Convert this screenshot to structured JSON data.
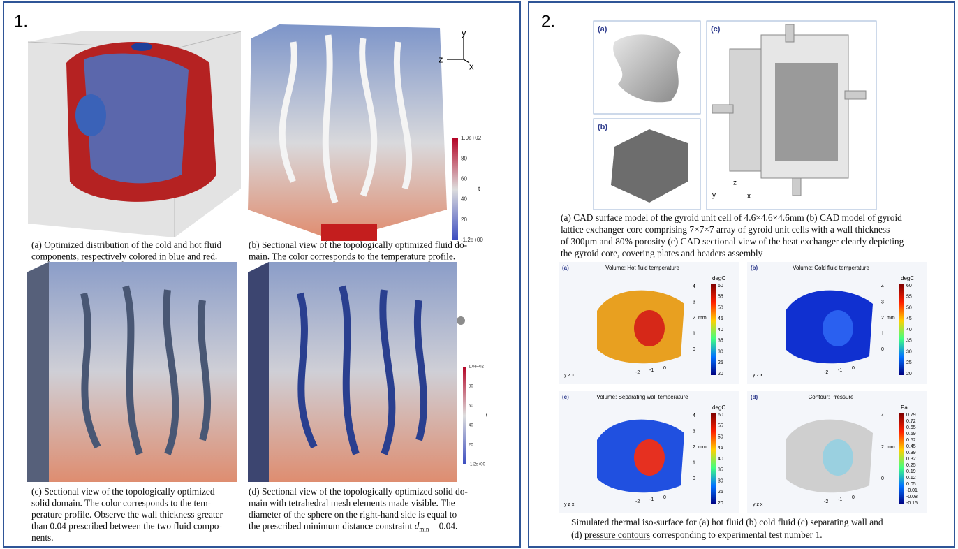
{
  "panel1": {
    "number": "1.",
    "axes": {
      "y": "y",
      "z": "z",
      "x": "x"
    },
    "colorbar_b": {
      "ticks": [
        "1.0e+02",
        "80",
        "60",
        "40",
        "20",
        "-1.2e+00"
      ],
      "label": "t"
    },
    "colorbar_d": {
      "ticks": [
        "1.0e+02",
        "80",
        "60",
        "40",
        "20",
        "-1.2e+00"
      ],
      "label": "t"
    },
    "captions": [
      {
        "lines": [
          "(a) Optimized distribution of the cold and hot fluid",
          "components, respectively colored in blue and red."
        ]
      },
      {
        "lines": [
          "(b) Sectional view of the topologically optimized fluid do-",
          "main. The color corresponds to the temperature profile."
        ]
      },
      {
        "lines": [
          "(c) Sectional view of the topologically optimized",
          "solid domain. The color corresponds to the tem-",
          "perature profile. Observe the wall thickness greater",
          "than 0.04 prescribed between the two fluid compo-",
          "nents."
        ]
      },
      {
        "lines": [
          "(d) Sectional view of the topologically optimized solid do-",
          "main with tetrahedral mesh elements made visible. The",
          "diameter of the sphere on the right-hand side is equal to"
        ],
        "math_line": {
          "text": "the prescribed minimum distance constraint ",
          "symbol": "d",
          "subscript": "min",
          "rest": " = 0.04."
        }
      }
    ]
  },
  "panel2": {
    "number": "2.",
    "cad_labels": [
      "(a)",
      "(b)",
      "(c)"
    ],
    "cad_axes": {
      "y": "y",
      "z": "z",
      "x": "x"
    },
    "caption_top": [
      "(a) CAD surface model of the gyroid unit cell of 4.6×4.6×4.6mm (b) CAD model of gyroid",
      "lattice exchanger core comprising 7×7×7 array of gyroid unit cells with a wall thickness",
      "of 300μm and 80% porosity (c) CAD sectional view of the heat exchanger clearly depicting",
      "the gyroid core, covering plates and headers assembly"
    ],
    "plots": [
      {
        "label": "(a)",
        "title": "Volume: Hot fluid temperature",
        "unit": "degC",
        "ticks": [
          "60",
          "55",
          "50",
          "45",
          "40",
          "35",
          "30",
          "25",
          "20"
        ],
        "axis_right": [
          "4",
          "3",
          "2",
          "1",
          "0"
        ],
        "axis_bottom": [
          "-2",
          "-1",
          "0"
        ],
        "axis_unit": "mm",
        "triad": "y z x"
      },
      {
        "label": "(b)",
        "title": "Volume: Cold fluid temperature",
        "unit": "degC",
        "ticks": [
          "60",
          "55",
          "50",
          "45",
          "40",
          "35",
          "30",
          "25",
          "20"
        ],
        "axis_right": [
          "4",
          "3",
          "2",
          "1",
          "0"
        ],
        "axis_bottom": [
          "-2",
          "-1",
          "0"
        ],
        "axis_unit": "mm",
        "triad": "y z x"
      },
      {
        "label": "(c)",
        "title": "Volume: Separating wall temperature",
        "unit": "degC",
        "ticks": [
          "60",
          "55",
          "50",
          "45",
          "40",
          "35",
          "30",
          "25",
          "20"
        ],
        "axis_right": [
          "4",
          "3",
          "2",
          "1",
          "0"
        ],
        "axis_bottom": [
          "-2",
          "-1",
          "0"
        ],
        "axis_unit": "mm",
        "triad": "y z x"
      },
      {
        "label": "(d)",
        "title": "Contour: Pressure",
        "unit": "Pa",
        "ticks": [
          "0.79",
          "0.72",
          "0.65",
          "0.59",
          "0.52",
          "0.45",
          "0.39",
          "0.32",
          "0.25",
          "0.19",
          "0.12",
          "0.05",
          "-0.01",
          "-0.08",
          "-0.15"
        ],
        "axis_right": [
          "4",
          "2",
          "0"
        ],
        "axis_bottom": [
          "-2",
          "-1",
          "0"
        ],
        "axis_unit": "mm",
        "triad": "y z x"
      }
    ],
    "caption_bottom": {
      "line1": "Simulated thermal iso-surface for (a) hot fluid (b) cold fluid (c) separating wall and",
      "line2_start": "(d) ",
      "line2_link": "pressure contours",
      "line2_end": " corresponding to experimental test number 1."
    }
  }
}
